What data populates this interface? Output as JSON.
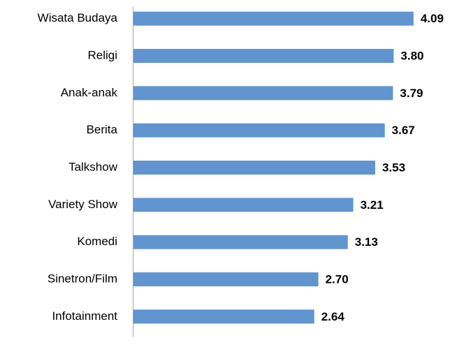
{
  "chart_data": {
    "type": "bar",
    "orientation": "horizontal",
    "categories": [
      "Wisata Budaya",
      "Religi",
      "Anak-anak",
      "Berita",
      "Talkshow",
      "Variety Show",
      "Komedi",
      "Sinetron/Film",
      "Infotainment"
    ],
    "values": [
      4.09,
      3.8,
      3.79,
      3.67,
      3.53,
      3.21,
      3.13,
      2.7,
      2.64
    ],
    "value_labels": [
      "4.09",
      "3.80",
      "3.79",
      "3.67",
      "3.53",
      "3.21",
      "3.13",
      "2.70",
      "2.64"
    ],
    "color": "#6095cf",
    "xlim": [
      0,
      4.5
    ]
  }
}
